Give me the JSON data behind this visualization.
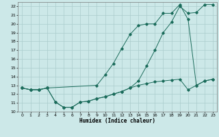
{
  "xlabel": "Humidex (Indice chaleur)",
  "line_color": "#1a6b5a",
  "bg_color": "#cce8e8",
  "grid_color": "#aacccc",
  "xlim": [
    -0.5,
    23.5
  ],
  "ylim": [
    10,
    22.5
  ],
  "yticks": [
    10,
    11,
    12,
    13,
    14,
    15,
    16,
    17,
    18,
    19,
    20,
    21,
    22
  ],
  "xticks": [
    0,
    1,
    2,
    3,
    4,
    5,
    6,
    7,
    8,
    9,
    10,
    11,
    12,
    13,
    14,
    15,
    16,
    17,
    18,
    19,
    20,
    21,
    22,
    23
  ],
  "line1_x": [
    0,
    1,
    2,
    3,
    9,
    10,
    11,
    12,
    13,
    14,
    15,
    16,
    17,
    18,
    19,
    20,
    21,
    22,
    23
  ],
  "line1_y": [
    12.7,
    12.5,
    12.5,
    12.7,
    13.0,
    14.2,
    15.5,
    17.2,
    18.8,
    19.8,
    20.0,
    20.0,
    21.2,
    21.2,
    22.2,
    20.5,
    13.0,
    13.5,
    13.7
  ],
  "line2_x": [
    0,
    1,
    2,
    3,
    4,
    5,
    6,
    7,
    8,
    9,
    10,
    11,
    12,
    13,
    14,
    15,
    16,
    17,
    18,
    19,
    20,
    21,
    22,
    23
  ],
  "line2_y": [
    12.7,
    12.5,
    12.5,
    12.7,
    11.1,
    10.5,
    10.5,
    11.1,
    11.2,
    11.5,
    11.7,
    12.0,
    12.3,
    12.7,
    13.5,
    15.2,
    17.0,
    19.0,
    20.2,
    22.0,
    21.2,
    21.3,
    22.2,
    22.2
  ],
  "line3_x": [
    0,
    1,
    2,
    3,
    4,
    5,
    6,
    7,
    8,
    9,
    10,
    11,
    12,
    13,
    14,
    15,
    16,
    17,
    18,
    19,
    20,
    21,
    22,
    23
  ],
  "line3_y": [
    12.7,
    12.5,
    12.5,
    12.7,
    11.1,
    10.5,
    10.5,
    11.1,
    11.2,
    11.5,
    11.7,
    12.0,
    12.3,
    12.7,
    13.0,
    13.2,
    13.4,
    13.5,
    13.6,
    13.7,
    12.5,
    13.0,
    13.5,
    13.7
  ]
}
